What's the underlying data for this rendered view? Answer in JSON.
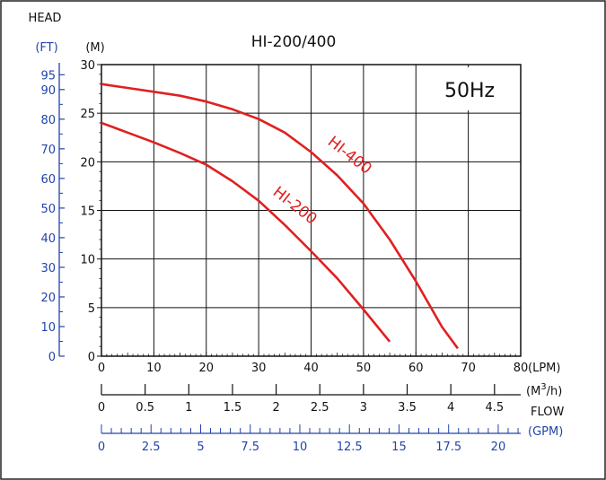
{
  "chart_data": {
    "type": "line",
    "title": "HI-200/400",
    "annotation": "50Hz",
    "head_label": "HEAD",
    "y_unit_ft": "(FT)",
    "y_unit_m": "(M)",
    "flow_label": "FLOW",
    "x_unit_lpm": "(LPM)",
    "x_unit_m3h_base": "(M",
    "x_unit_m3h_sup": "3",
    "x_unit_m3h_tail": "/h)",
    "x_unit_gpm": "(GPM)",
    "xlim": [
      0,
      80
    ],
    "ylim": [
      0,
      30
    ],
    "grid": true,
    "x_ticks_lpm": [
      "0",
      "10",
      "20",
      "30",
      "40",
      "50",
      "60",
      "70",
      "80"
    ],
    "y_ticks_m": [
      "0",
      "5",
      "10",
      "15",
      "20",
      "25",
      "30"
    ],
    "y_ticks_ft": [
      "0",
      "10",
      "20",
      "30",
      "40",
      "50",
      "60",
      "70",
      "80",
      "90",
      "95"
    ],
    "x_ticks_m3h": [
      "0",
      "0.5",
      "1",
      "1.5",
      "2",
      "2.5",
      "3",
      "3.5",
      "4",
      "4.5"
    ],
    "x_ticks_gpm": [
      "0",
      "2.5",
      "5",
      "7.5",
      "10",
      "12.5",
      "15",
      "17.5",
      "20"
    ],
    "series": [
      {
        "name": "HI-400",
        "color": "#e02020",
        "points": [
          [
            0,
            28
          ],
          [
            5,
            27.6
          ],
          [
            10,
            27.2
          ],
          [
            15,
            26.8
          ],
          [
            20,
            26.2
          ],
          [
            25,
            25.4
          ],
          [
            30,
            24.4
          ],
          [
            35,
            23
          ],
          [
            40,
            21
          ],
          [
            45,
            18.6
          ],
          [
            50,
            15.7
          ],
          [
            55,
            12
          ],
          [
            60,
            7.7
          ],
          [
            65,
            3
          ],
          [
            68,
            0.8
          ]
        ]
      },
      {
        "name": "HI-200",
        "color": "#e02020",
        "points": [
          [
            0,
            24
          ],
          [
            5,
            23
          ],
          [
            10,
            22
          ],
          [
            15,
            20.9
          ],
          [
            20,
            19.7
          ],
          [
            25,
            18
          ],
          [
            30,
            16
          ],
          [
            35,
            13.5
          ],
          [
            40,
            10.8
          ],
          [
            45,
            8
          ],
          [
            50,
            4.8
          ],
          [
            55,
            1.5
          ]
        ]
      }
    ]
  }
}
